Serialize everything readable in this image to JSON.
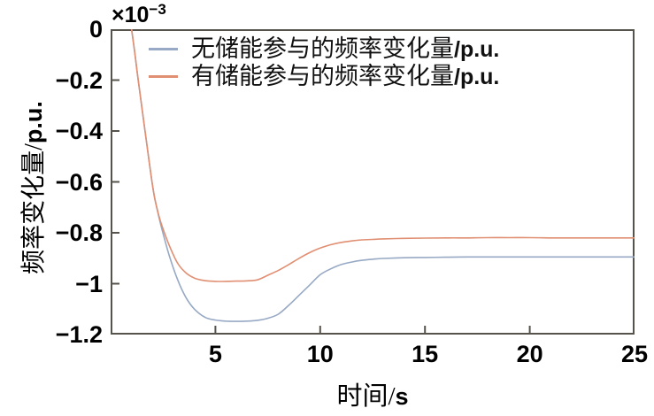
{
  "figure": {
    "background": "#ffffff",
    "axis_color": "#56534d",
    "text_color": "#000000"
  },
  "axes": {
    "y_offset": {
      "base": "×10",
      "exponent": "−3"
    },
    "x_label": {
      "text": "时间/",
      "unit": "s"
    },
    "y_label": {
      "text": "频率变化量/",
      "unit": "p.u."
    }
  },
  "chart_data": {
    "type": "line",
    "title": "",
    "xlabel": "时间/s",
    "ylabel": "频率变化量/p.u.",
    "y_unit_multiplier": "1e-3",
    "grid": false,
    "legend": {
      "position": "top-left-inside",
      "box": false
    },
    "x_axis": {
      "min": 0,
      "max": 25,
      "ticks": [
        5,
        10,
        15,
        20,
        25
      ],
      "tick_labels": [
        "5",
        "10",
        "15",
        "20",
        "25"
      ]
    },
    "y_axis": {
      "min": -1.2,
      "max": 0,
      "ticks": [
        0,
        -0.2,
        -0.4,
        -0.6,
        -0.8,
        -1,
        -1.2
      ],
      "tick_labels": [
        "0",
        "−0.2",
        "−0.4",
        "−0.6",
        "−0.8",
        "−1",
        "−1.2"
      ]
    },
    "series": [
      {
        "name": "无储能参与的频率变化量/p.u.",
        "label_cn": "无储能参与的频率变化量",
        "label_unit": "/p.u.",
        "color": "#97a9c4",
        "steady_state": -0.9,
        "min_value": -1.148,
        "x": [
          1.0,
          1.15,
          1.3,
          1.6,
          2.0,
          2.2,
          2.4,
          2.8,
          3.2,
          3.6,
          4.0,
          4.5,
          5.0,
          5.5,
          6.0,
          6.5,
          7.0,
          7.5,
          8.0,
          8.5,
          9.0,
          9.5,
          10.0,
          10.5,
          11.0,
          11.5,
          12.0,
          12.5,
          13.0,
          14.0,
          15.0,
          16.0,
          17.0,
          18.0,
          19.0,
          20.0,
          21.0,
          22.0,
          23.0,
          24.0,
          25.0
        ],
        "y": [
          0,
          -0.09,
          -0.19,
          -0.375,
          -0.615,
          -0.7,
          -0.77,
          -0.89,
          -0.985,
          -1.055,
          -1.1,
          -1.132,
          -1.143,
          -1.147,
          -1.148,
          -1.147,
          -1.144,
          -1.136,
          -1.12,
          -1.085,
          -1.045,
          -1.005,
          -0.965,
          -0.942,
          -0.925,
          -0.915,
          -0.908,
          -0.904,
          -0.901,
          -0.898,
          -0.897,
          -0.896,
          -0.895,
          -0.895,
          -0.895,
          -0.895,
          -0.895,
          -0.895,
          -0.895,
          -0.895,
          -0.895
        ]
      },
      {
        "name": "有储能参与的频率变化量/p.u.",
        "label_cn": "有储能参与的频率变化量",
        "label_unit": "/p.u.",
        "color": "#e08f72",
        "steady_state": -0.82,
        "min_value": -0.991,
        "x": [
          1.0,
          1.15,
          1.3,
          1.6,
          2.0,
          2.2,
          2.4,
          2.8,
          3.2,
          3.6,
          4.0,
          4.5,
          5.0,
          5.5,
          6.0,
          6.5,
          7.0,
          7.5,
          8.0,
          8.5,
          9.0,
          9.5,
          10.0,
          10.5,
          11.0,
          11.5,
          12.0,
          12.5,
          13.0,
          14.0,
          15.0,
          16.0,
          17.0,
          18.0,
          19.0,
          20.0,
          21.0,
          22.0,
          23.0,
          24.0,
          25.0
        ],
        "y": [
          0,
          -0.09,
          -0.19,
          -0.375,
          -0.615,
          -0.7,
          -0.76,
          -0.85,
          -0.92,
          -0.958,
          -0.978,
          -0.988,
          -0.991,
          -0.991,
          -0.99,
          -0.989,
          -0.985,
          -0.967,
          -0.948,
          -0.925,
          -0.9,
          -0.878,
          -0.86,
          -0.847,
          -0.838,
          -0.832,
          -0.828,
          -0.826,
          -0.824,
          -0.822,
          -0.821,
          -0.82,
          -0.82,
          -0.819,
          -0.819,
          -0.819,
          -0.82,
          -0.82,
          -0.82,
          -0.82,
          -0.82
        ]
      }
    ]
  }
}
